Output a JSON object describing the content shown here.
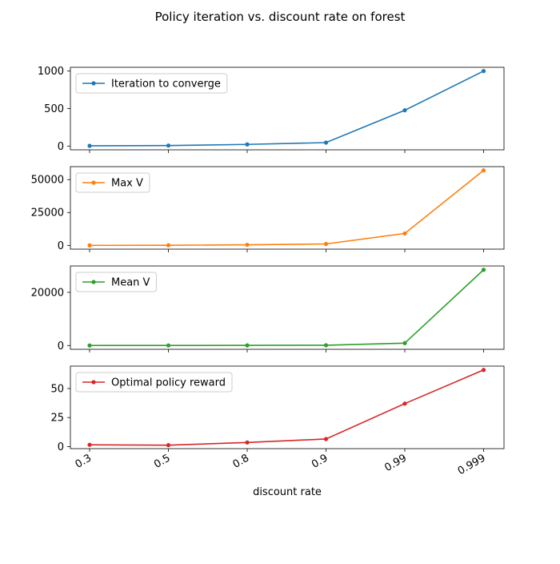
{
  "chart_data": {
    "title": "Policy iteration vs. discount rate on forest",
    "xlabel": "discount rate",
    "categories": [
      "0.3",
      "0.5",
      "0.8",
      "0.9",
      "0.99",
      "0.999"
    ],
    "panels": [
      {
        "type": "line",
        "series": [
          {
            "name": "Iteration to converge",
            "color": "#1f77b4",
            "values": [
              3,
              7,
              22,
              46,
              477,
              1000
            ]
          }
        ],
        "yticks": [
          0,
          500,
          1000
        ],
        "ylim": [
          -50,
          1050
        ],
        "legend": "top-left",
        "grid": false
      },
      {
        "type": "line",
        "series": [
          {
            "name": "Max V",
            "color": "#ff7f0e",
            "values": [
              30,
              100,
              460,
              1100,
              9100,
              57000
            ]
          }
        ],
        "yticks": [
          0,
          25000,
          50000
        ],
        "ylim": [
          -2850,
          59850
        ],
        "legend": "top-left",
        "grid": false
      },
      {
        "type": "line",
        "series": [
          {
            "name": "Mean V",
            "color": "#2ca02c",
            "values": [
              10,
              20,
              50,
              100,
              900,
              28500
            ]
          }
        ],
        "yticks": [
          0,
          20000
        ],
        "ylim": [
          -1425,
          29925
        ],
        "legend": "top-left",
        "grid": false
      },
      {
        "type": "line",
        "series": [
          {
            "name": "Optimal policy reward",
            "color": "#d62728",
            "values": [
              1.5,
              1.2,
              3.5,
              6.5,
              37,
              66
            ]
          }
        ],
        "yticks": [
          0,
          25,
          50
        ],
        "ylim": [
          -1.8,
          69.3
        ],
        "legend": "top-left",
        "grid": false
      }
    ]
  }
}
